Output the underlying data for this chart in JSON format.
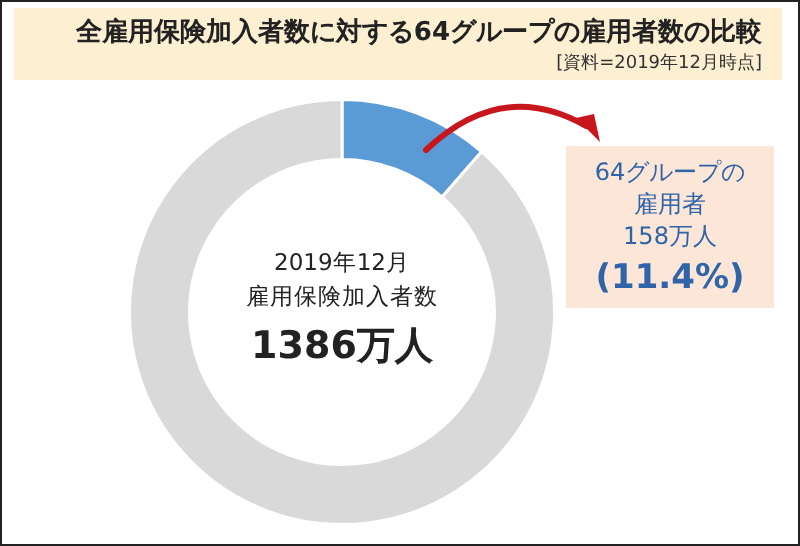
{
  "chart_data": {
    "type": "donut",
    "title": "全雇用保険加入者数に対する64グループの雇用者数の比較",
    "subtitle": "[資料=2019年12月時点]",
    "categories": [
      null,
      null
    ],
    "values": [
      11.4,
      88.6
    ],
    "colors": [
      "#5b9bd5",
      "#d9d9d9"
    ],
    "annotations": [
      "2019年12月",
      "雇用保険加入者数",
      "1386万人",
      "64グループの",
      "雇用者",
      "158万人",
      "(11.4%)"
    ]
  }
}
